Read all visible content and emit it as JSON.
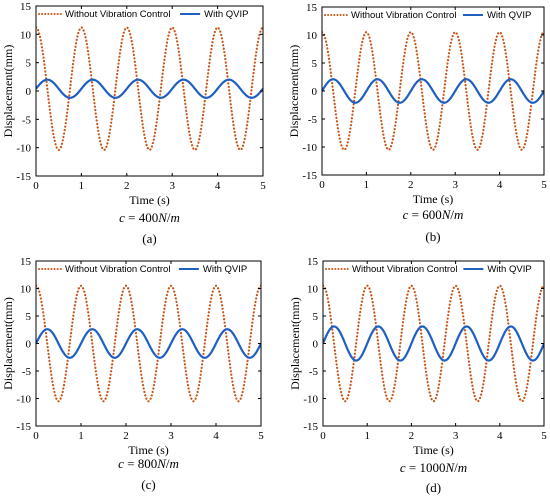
{
  "chart_data": [
    {
      "type": "line",
      "panel_tag": "(a)",
      "caption": "c = 400N/m",
      "xlabel": "Time (s)",
      "ylabel": "Displacement(mm)",
      "xlim": [
        0,
        5
      ],
      "ylim": [
        -15,
        15
      ],
      "xticks": [
        0,
        1,
        2,
        3,
        4,
        5
      ],
      "yticks": [
        -15,
        -10,
        -5,
        0,
        5,
        10,
        15
      ],
      "legend_position": "top",
      "grid": false,
      "series": [
        {
          "name": "Without Vibration Control",
          "color": "#c8561a",
          "style": "dotted",
          "amplitude": 10.8,
          "frequency": 1.0,
          "phase_deg": 90,
          "offset": 0.4
        },
        {
          "name": "With QVIP",
          "color": "#1f5fbf",
          "style": "solid",
          "amplitude": 1.6,
          "frequency": 1.0,
          "phase_deg": 0,
          "offset": 0.4
        }
      ]
    },
    {
      "type": "line",
      "panel_tag": "(b)",
      "caption": "c = 600N/m",
      "xlabel": "Time (s)",
      "ylabel": "Displacement(mm)",
      "xlim": [
        0,
        5
      ],
      "ylim": [
        -15,
        15
      ],
      "xticks": [
        0,
        1,
        2,
        3,
        4,
        5
      ],
      "yticks": [
        -15,
        -10,
        -5,
        0,
        5,
        10,
        15
      ],
      "legend_position": "top",
      "grid": false,
      "series": [
        {
          "name": "Without Vibration Control",
          "color": "#c8561a",
          "style": "dotted",
          "amplitude": 10.5,
          "frequency": 1.0,
          "phase_deg": 90,
          "offset": 0.0
        },
        {
          "name": "With QVIP",
          "color": "#1f5fbf",
          "style": "solid",
          "amplitude": 2.1,
          "frequency": 1.0,
          "phase_deg": 0,
          "offset": 0.0
        }
      ]
    },
    {
      "type": "line",
      "panel_tag": "(c)",
      "caption": "c = 800N/m",
      "xlabel": "Time (s)",
      "ylabel": "Displacement(mm)",
      "xlim": [
        0,
        5
      ],
      "ylim": [
        -15,
        15
      ],
      "xticks": [
        0,
        1,
        2,
        3,
        4,
        5
      ],
      "yticks": [
        -15,
        -10,
        -5,
        0,
        5,
        10,
        15
      ],
      "legend_position": "top",
      "grid": false,
      "series": [
        {
          "name": "Without Vibration Control",
          "color": "#c8561a",
          "style": "dotted",
          "amplitude": 10.5,
          "frequency": 1.0,
          "phase_deg": 90,
          "offset": 0.0
        },
        {
          "name": "With QVIP",
          "color": "#1f5fbf",
          "style": "solid",
          "amplitude": 2.6,
          "frequency": 1.0,
          "phase_deg": 0,
          "offset": 0.0
        }
      ]
    },
    {
      "type": "line",
      "panel_tag": "(d)",
      "caption": "c = 1000N/m",
      "xlabel": "Time (s)",
      "ylabel": "Displacement(mm)",
      "xlim": [
        0,
        5
      ],
      "ylim": [
        -15,
        15
      ],
      "xticks": [
        0,
        1,
        2,
        3,
        4,
        5
      ],
      "yticks": [
        -15,
        -10,
        -5,
        0,
        5,
        10,
        15
      ],
      "legend_position": "top",
      "grid": false,
      "series": [
        {
          "name": "Without Vibration Control",
          "color": "#c8561a",
          "style": "dotted",
          "amplitude": 10.5,
          "frequency": 1.0,
          "phase_deg": 90,
          "offset": 0.0
        },
        {
          "name": "With QVIP",
          "color": "#1f5fbf",
          "style": "solid",
          "amplitude": 3.1,
          "frequency": 1.0,
          "phase_deg": 0,
          "offset": 0.0
        }
      ]
    }
  ]
}
